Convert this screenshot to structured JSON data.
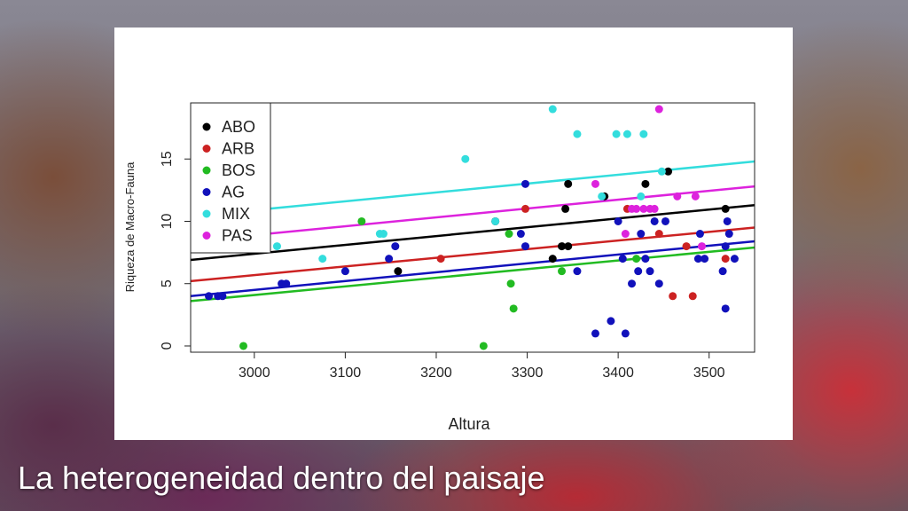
{
  "slide": {
    "title": "La heterogeneidad dentro del paisaje"
  },
  "chart_data": {
    "type": "scatter",
    "title": "",
    "xlabel": "Altura",
    "ylabel": "Riqueza de Macro-Fauna",
    "xlim": [
      2930,
      3550
    ],
    "ylim": [
      -0.5,
      19.5
    ],
    "xticks": [
      "3000",
      "3100",
      "3200",
      "3300",
      "3400",
      "3500"
    ],
    "yticks": [
      "0",
      "5",
      "10",
      "15"
    ],
    "legend_placement": "top-left",
    "grid": false,
    "series": [
      {
        "name": "ABO",
        "color": "#000000",
        "points": [
          [
            3158,
            6
          ],
          [
            3265,
            10
          ],
          [
            3342,
            11
          ],
          [
            3345,
            13
          ],
          [
            3338,
            8
          ],
          [
            3345,
            8
          ],
          [
            3385,
            12
          ],
          [
            3430,
            13
          ],
          [
            3455,
            14
          ],
          [
            3518,
            11
          ],
          [
            3328,
            7
          ]
        ],
        "trend": [
          [
            2930,
            6.9
          ],
          [
            3550,
            11.3
          ]
        ]
      },
      {
        "name": "ARB",
        "color": "#cc2222",
        "points": [
          [
            3205,
            7
          ],
          [
            3298,
            11
          ],
          [
            3410,
            11
          ],
          [
            3445,
            9
          ],
          [
            3460,
            4
          ],
          [
            3475,
            8
          ],
          [
            3482,
            4
          ],
          [
            3518,
            7
          ]
        ],
        "trend": [
          [
            2930,
            5.2
          ],
          [
            3550,
            9.5
          ]
        ]
      },
      {
        "name": "BOS",
        "color": "#22bb22",
        "points": [
          [
            2988,
            0
          ],
          [
            3118,
            10
          ],
          [
            3252,
            0
          ],
          [
            3280,
            9
          ],
          [
            3282,
            5
          ],
          [
            3285,
            3
          ],
          [
            3338,
            6
          ],
          [
            3420,
            7
          ]
        ],
        "trend": [
          [
            2930,
            3.6
          ],
          [
            3550,
            7.9
          ]
        ]
      },
      {
        "name": "AG",
        "color": "#1111bb",
        "points": [
          [
            2950,
            4
          ],
          [
            2960,
            4
          ],
          [
            2965,
            4
          ],
          [
            3030,
            5
          ],
          [
            3035,
            5
          ],
          [
            3100,
            6
          ],
          [
            3148,
            7
          ],
          [
            3155,
            8
          ],
          [
            3293,
            9
          ],
          [
            3298,
            8
          ],
          [
            3298,
            13
          ],
          [
            3355,
            6
          ],
          [
            3375,
            1
          ],
          [
            3392,
            2
          ],
          [
            3400,
            10
          ],
          [
            3405,
            7
          ],
          [
            3408,
            1
          ],
          [
            3415,
            5
          ],
          [
            3422,
            6
          ],
          [
            3425,
            9
          ],
          [
            3430,
            7
          ],
          [
            3435,
            6
          ],
          [
            3440,
            10
          ],
          [
            3445,
            5
          ],
          [
            3452,
            10
          ],
          [
            3488,
            7
          ],
          [
            3490,
            9
          ],
          [
            3495,
            7
          ],
          [
            3515,
            6
          ],
          [
            3518,
            3
          ],
          [
            3520,
            10
          ],
          [
            3522,
            9
          ],
          [
            3528,
            7
          ],
          [
            3518,
            8
          ]
        ],
        "trend": [
          [
            2930,
            4.0
          ],
          [
            3550,
            8.4
          ]
        ]
      },
      {
        "name": "MIX",
        "color": "#33dddd",
        "points": [
          [
            3025,
            8
          ],
          [
            3075,
            7
          ],
          [
            3138,
            9
          ],
          [
            3142,
            9
          ],
          [
            3232,
            15
          ],
          [
            3265,
            10
          ],
          [
            3328,
            19
          ],
          [
            3355,
            17
          ],
          [
            3382,
            12
          ],
          [
            3398,
            17
          ],
          [
            3410,
            17
          ],
          [
            3425,
            12
          ],
          [
            3428,
            17
          ],
          [
            3448,
            14
          ]
        ],
        "trend": [
          [
            2930,
            10.4
          ],
          [
            3550,
            14.8
          ]
        ]
      },
      {
        "name": "PAS",
        "color": "#dd22dd",
        "points": [
          [
            3375,
            13
          ],
          [
            3408,
            9
          ],
          [
            3415,
            11
          ],
          [
            3420,
            11
          ],
          [
            3428,
            11
          ],
          [
            3435,
            11
          ],
          [
            3440,
            11
          ],
          [
            3445,
            19
          ],
          [
            3465,
            12
          ],
          [
            3485,
            12
          ],
          [
            3492,
            8
          ]
        ],
        "trend": [
          [
            2930,
            8.4
          ],
          [
            3550,
            12.8
          ]
        ]
      }
    ]
  }
}
